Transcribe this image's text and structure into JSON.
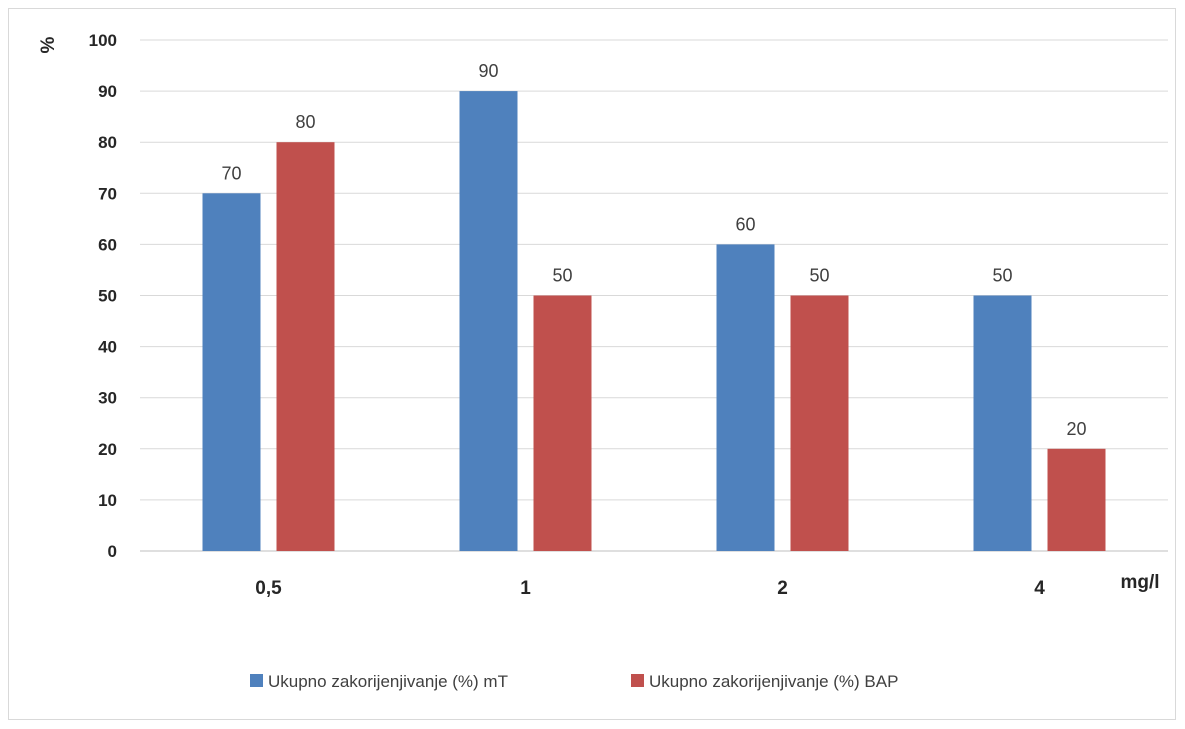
{
  "chart_data": {
    "type": "bar",
    "categories": [
      "0,5",
      "1",
      "2",
      "4"
    ],
    "series": [
      {
        "name": "Ukupno zakorijenjivanje (%) mT",
        "color": "#4F81BD",
        "values": [
          70,
          90,
          60,
          50
        ]
      },
      {
        "name": "Ukupno zakorijenjivanje (%) BAP",
        "color": "#C0504D",
        "values": [
          80,
          50,
          50,
          20
        ]
      }
    ],
    "xlabel": "mg/l",
    "ylabel": "%",
    "ylim": [
      0,
      100
    ],
    "yticks": [
      0,
      10,
      20,
      30,
      40,
      50,
      60,
      70,
      80,
      90,
      100
    ],
    "grid": true,
    "legend_position": "bottom"
  }
}
